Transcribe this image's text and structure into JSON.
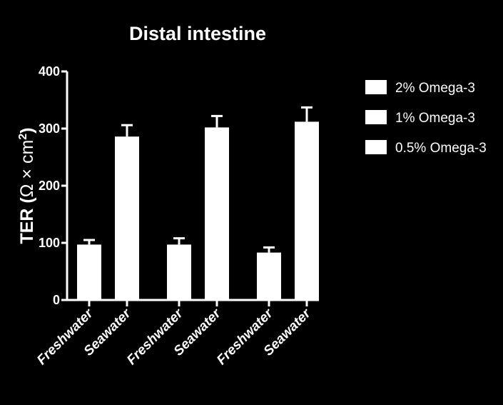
{
  "chart_data": {
    "type": "bar",
    "title": "Distal intestine",
    "ylabel_main": "TER (",
    "ylabel_unit": "Ω × cm",
    "ylabel_sup": "2",
    "ylabel_close": ")",
    "xlabel": "",
    "ylim": [
      0,
      400
    ],
    "yticks": [
      "0",
      "100",
      "200",
      "300",
      "400"
    ],
    "categories": [
      "Freshwater",
      "Seawater"
    ],
    "series": [
      {
        "name": "2% Omega-3",
        "values": [
          97,
          286
        ],
        "errors": [
          8,
          20
        ]
      },
      {
        "name": "1% Omega-3",
        "values": [
          97,
          302
        ],
        "errors": [
          11,
          20
        ]
      },
      {
        "name": "0.5% Omega-3",
        "values": [
          83,
          312
        ],
        "errors": [
          9,
          25
        ]
      }
    ],
    "legend_position": "right",
    "grid": false,
    "colors": {
      "background": "#000000",
      "bar": "#ffffff",
      "axis": "#ffffff"
    }
  }
}
